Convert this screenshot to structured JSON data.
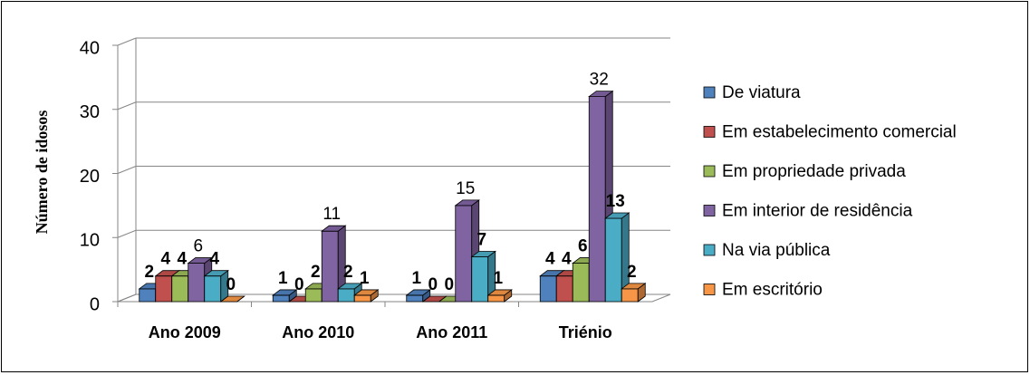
{
  "chart_data": {
    "type": "bar3d",
    "y_label": "Número de idosos",
    "categories": [
      "Ano 2009",
      "Ano 2010",
      "Ano 2011",
      "Triénio"
    ],
    "series": [
      {
        "name": "De viatura",
        "color": "#4f81bd",
        "label_weight": "bold",
        "values": [
          2,
          1,
          1,
          4
        ]
      },
      {
        "name": "Em estabelecimento comercial",
        "color": "#c0504d",
        "label_weight": "bold",
        "values": [
          4,
          0,
          0,
          4
        ]
      },
      {
        "name": "Em propriedade privada",
        "color": "#9bbb59",
        "label_weight": "bold",
        "values": [
          4,
          2,
          0,
          6
        ]
      },
      {
        "name": "Em interior de residência",
        "color": "#8064a2",
        "label_weight": "normal",
        "values": [
          6,
          11,
          15,
          32
        ]
      },
      {
        "name": "Na via pública",
        "color": "#4bacc6",
        "label_weight": "bold",
        "values": [
          4,
          2,
          7,
          13
        ]
      },
      {
        "name": "Em escritório",
        "color": "#f79646",
        "label_weight": "bold",
        "values": [
          0,
          1,
          1,
          2
        ]
      }
    ],
    "ylim": [
      0,
      40
    ],
    "yticks": [
      0,
      10,
      20,
      30,
      40
    ],
    "grid": true,
    "legend": "right"
  }
}
